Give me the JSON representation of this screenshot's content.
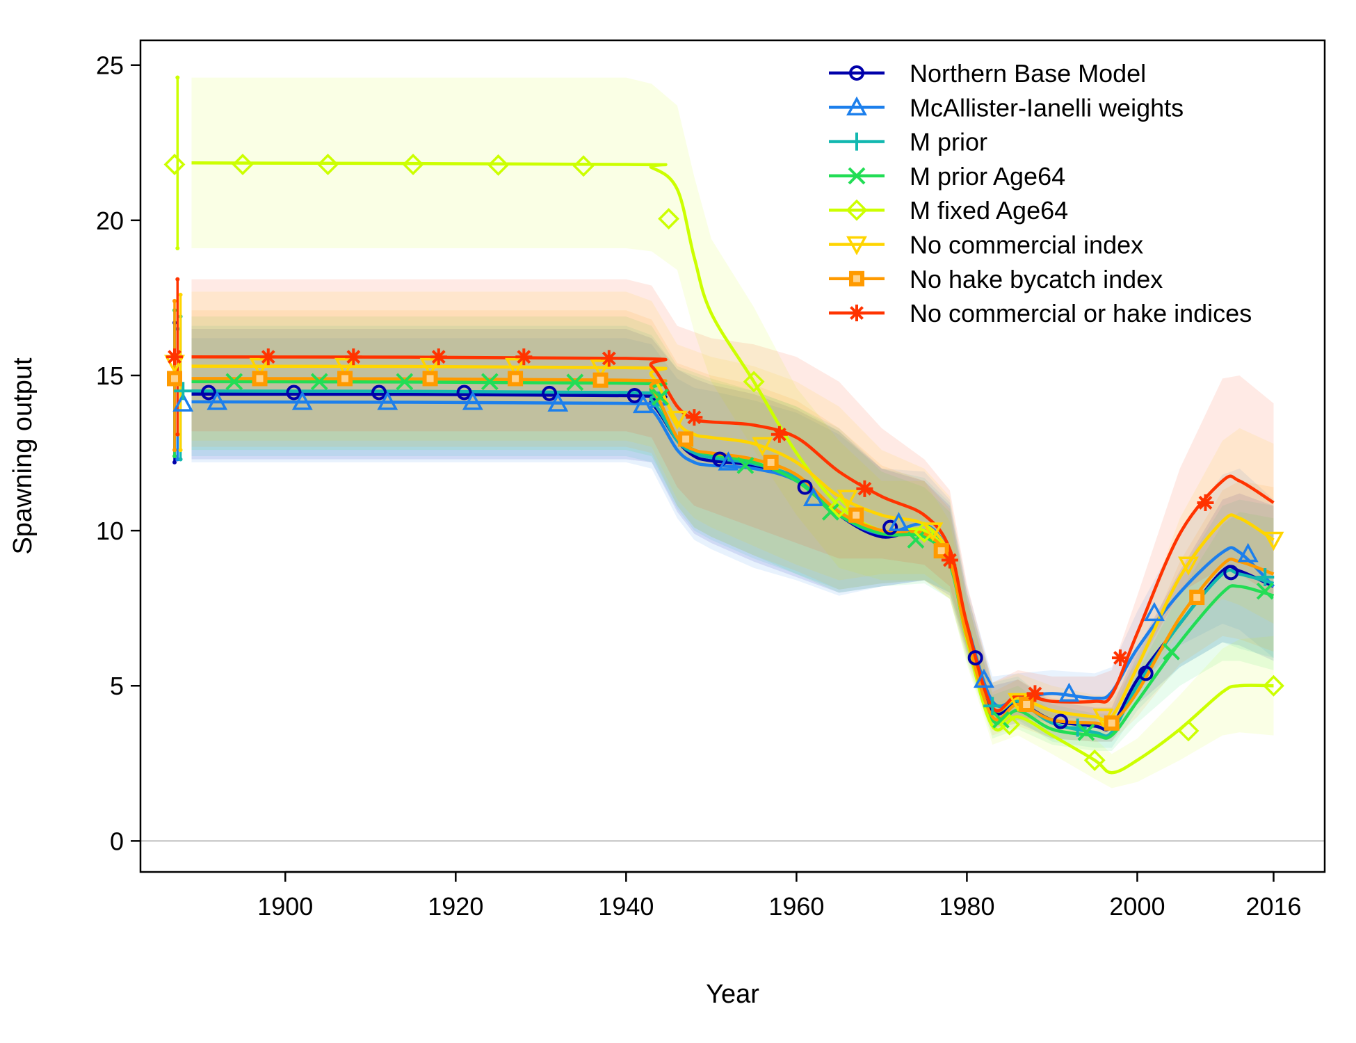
{
  "chart_data": {
    "type": "line",
    "xlabel": "Year",
    "ylabel": "Spawning output",
    "xlim": [
      1883,
      2022
    ],
    "ylim": [
      -1,
      25.8
    ],
    "x_ticks": [
      1900,
      1920,
      1940,
      1960,
      1980,
      2000,
      2016
    ],
    "y_ticks": [
      0,
      5,
      10,
      15,
      20,
      25
    ],
    "zero_line": true,
    "legend_position": "top-right",
    "x": [
      1889,
      1940,
      1943,
      1946,
      1948,
      1950,
      1955,
      1960,
      1965,
      1970,
      1975,
      1978,
      1980,
      1983,
      1986,
      1990,
      1995,
      1997,
      2000,
      2005,
      2010,
      2012,
      2016
    ],
    "series": [
      {
        "name": "Northern Base Model",
        "color": "#0000AA",
        "marker": "circle",
        "start_value": 14.4,
        "start_ci": [
          12.2,
          16.7
        ],
        "values": [
          14.4,
          14.35,
          14.1,
          12.9,
          12.4,
          12.25,
          12.1,
          11.7,
          10.5,
          9.8,
          10.0,
          9.0,
          6.7,
          4.2,
          4.45,
          3.9,
          3.7,
          3.7,
          5.2,
          7.0,
          8.7,
          8.7,
          8.2
        ],
        "ci_lower": [
          12.3,
          12.3,
          12.2,
          10.6,
          9.9,
          9.6,
          9.0,
          8.5,
          8.0,
          8.2,
          8.4,
          7.9,
          6.0,
          3.6,
          3.8,
          3.3,
          3.2,
          3.2,
          4.4,
          5.6,
          6.4,
          6.3,
          5.8
        ],
        "ci_upper": [
          16.5,
          16.5,
          16.2,
          15.2,
          14.9,
          14.7,
          14.4,
          13.9,
          13.2,
          12.0,
          11.6,
          10.8,
          8.0,
          5.0,
          5.2,
          4.5,
          4.3,
          4.3,
          6.2,
          8.7,
          11.0,
          11.2,
          10.8
        ],
        "markers": [
          [
            1891,
            14.45
          ],
          [
            1901,
            14.45
          ],
          [
            1911,
            14.45
          ],
          [
            1921,
            14.45
          ],
          [
            1931,
            14.42
          ],
          [
            1941,
            14.35
          ],
          [
            1951,
            12.3
          ],
          [
            1961,
            11.4
          ],
          [
            1971,
            10.1
          ],
          [
            1981,
            5.9
          ],
          [
            1991,
            3.85
          ],
          [
            2001,
            5.4
          ],
          [
            2011,
            8.65
          ]
        ]
      },
      {
        "name": "McAllister-Ianelli weights",
        "color": "#1C7FEC",
        "marker": "triangle",
        "start_value": 14.1,
        "start_ci": [
          12.3,
          16.5
        ],
        "values": [
          14.15,
          14.1,
          13.9,
          12.6,
          12.2,
          12.1,
          12.0,
          11.6,
          10.5,
          9.9,
          10.2,
          9.2,
          7.0,
          4.5,
          4.6,
          4.75,
          4.6,
          4.8,
          6.2,
          8.0,
          9.3,
          9.3,
          8.2
        ],
        "ci_lower": [
          12.2,
          12.2,
          12.0,
          10.4,
          9.7,
          9.4,
          8.8,
          8.4,
          7.9,
          8.2,
          8.4,
          8.0,
          6.2,
          3.8,
          3.9,
          4.0,
          3.9,
          4.1,
          5.0,
          6.3,
          7.0,
          6.8,
          5.9
        ],
        "ci_upper": [
          16.2,
          16.2,
          16.0,
          14.9,
          14.6,
          14.5,
          14.2,
          13.8,
          13.1,
          12.0,
          11.9,
          11.0,
          8.2,
          5.3,
          5.4,
          5.5,
          5.4,
          5.6,
          7.4,
          9.9,
          11.8,
          12.0,
          11.0
        ],
        "markers": [
          [
            1888,
            14.1
          ],
          [
            1892,
            14.15
          ],
          [
            1902,
            14.15
          ],
          [
            1912,
            14.15
          ],
          [
            1922,
            14.15
          ],
          [
            1932,
            14.1
          ],
          [
            1942,
            14.05
          ],
          [
            1952,
            12.2
          ],
          [
            1962,
            11.05
          ],
          [
            1972,
            10.25
          ],
          [
            1982,
            5.2
          ],
          [
            1992,
            4.75
          ],
          [
            2002,
            7.35
          ],
          [
            2013,
            9.25
          ]
        ]
      },
      {
        "name": "M prior",
        "color": "#12B8B0",
        "marker": "plus",
        "start_value": 14.5,
        "start_ci": [
          12.3,
          16.9
        ],
        "values": [
          14.5,
          14.45,
          14.2,
          12.9,
          12.5,
          12.35,
          12.15,
          11.7,
          10.6,
          9.95,
          10.0,
          9.1,
          6.8,
          4.3,
          4.5,
          3.8,
          3.5,
          3.5,
          5.0,
          7.0,
          8.6,
          8.6,
          8.3
        ],
        "ci_lower": [
          12.4,
          12.4,
          12.2,
          10.7,
          10.0,
          9.7,
          9.1,
          8.6,
          8.1,
          8.3,
          8.4,
          8.0,
          6.1,
          3.7,
          3.9,
          3.2,
          3.0,
          3.0,
          4.2,
          5.6,
          6.4,
          6.2,
          5.9
        ],
        "ci_upper": [
          16.6,
          16.6,
          16.3,
          15.2,
          15.0,
          14.8,
          14.5,
          14.0,
          13.3,
          12.0,
          11.7,
          10.9,
          8.0,
          5.1,
          5.3,
          4.4,
          4.1,
          4.1,
          6.0,
          8.6,
          10.8,
          11.0,
          10.8
        ],
        "markers": [
          [
            1888,
            14.5
          ],
          [
            1983,
            4.35
          ],
          [
            1993,
            3.65
          ],
          [
            2015,
            8.5
          ]
        ]
      },
      {
        "name": "M prior Age64",
        "color": "#22DD55",
        "marker": "x",
        "start_value": 14.7,
        "start_ci": [
          12.4,
          17.1
        ],
        "values": [
          14.8,
          14.75,
          14.5,
          13.0,
          12.6,
          12.45,
          12.2,
          11.6,
          10.5,
          9.9,
          9.8,
          8.9,
          6.5,
          3.9,
          4.2,
          3.6,
          3.4,
          3.4,
          4.5,
          6.4,
          8.0,
          8.2,
          7.9
        ],
        "ci_lower": [
          12.6,
          12.6,
          12.4,
          10.8,
          10.1,
          9.8,
          9.2,
          8.6,
          8.0,
          8.2,
          8.3,
          7.8,
          5.8,
          3.3,
          3.6,
          3.1,
          2.9,
          2.9,
          3.8,
          5.0,
          5.8,
          5.8,
          5.5
        ],
        "ci_upper": [
          16.9,
          16.9,
          16.6,
          15.3,
          15.1,
          14.9,
          14.5,
          14.0,
          13.2,
          11.9,
          11.4,
          10.6,
          7.8,
          4.7,
          5.0,
          4.2,
          4.0,
          4.0,
          5.4,
          8.0,
          10.2,
          10.6,
          10.4
        ],
        "markers": [
          [
            1894,
            14.8
          ],
          [
            1904,
            14.8
          ],
          [
            1914,
            14.8
          ],
          [
            1924,
            14.8
          ],
          [
            1934,
            14.78
          ],
          [
            1944,
            14.3
          ],
          [
            1954,
            12.1
          ],
          [
            1964,
            10.6
          ],
          [
            1974,
            9.7
          ],
          [
            1984,
            3.9
          ],
          [
            1994,
            3.5
          ],
          [
            2004,
            6.1
          ],
          [
            2015,
            8.05
          ]
        ]
      },
      {
        "name": "M fixed Age64",
        "color": "#CCFF00",
        "marker": "diamond",
        "start_value": 21.8,
        "start_ci": [
          19.1,
          24.6
        ],
        "values": [
          21.85,
          21.8,
          21.7,
          21.0,
          18.8,
          17.0,
          14.8,
          12.5,
          10.8,
          10.0,
          10.0,
          9.0,
          6.5,
          3.7,
          4.0,
          3.4,
          2.6,
          2.2,
          2.6,
          3.6,
          4.8,
          5.0,
          5.0
        ],
        "ci_lower": [
          19.1,
          19.1,
          19.0,
          18.4,
          16.4,
          14.8,
          12.6,
          10.5,
          8.8,
          8.4,
          8.4,
          7.8,
          5.7,
          3.1,
          3.4,
          2.8,
          2.0,
          1.7,
          1.9,
          2.6,
          3.4,
          3.5,
          3.4
        ],
        "ci_upper": [
          24.6,
          24.6,
          24.4,
          23.7,
          21.4,
          19.4,
          17.2,
          14.6,
          12.9,
          11.6,
          11.6,
          10.3,
          7.4,
          4.4,
          4.7,
          4.1,
          3.3,
          2.8,
          3.3,
          4.7,
          6.2,
          6.5,
          6.6
        ],
        "markers": [
          [
            1887,
            21.8
          ],
          [
            1895,
            21.8
          ],
          [
            1905,
            21.8
          ],
          [
            1915,
            21.8
          ],
          [
            1925,
            21.78
          ],
          [
            1935,
            21.75
          ],
          [
            1945,
            20.05
          ],
          [
            1955,
            14.8
          ],
          [
            1965,
            10.75
          ],
          [
            1975,
            9.95
          ],
          [
            1985,
            3.75
          ],
          [
            1995,
            2.6
          ],
          [
            2006,
            3.55
          ],
          [
            2016,
            5.0
          ]
        ]
      },
      {
        "name": "No commercial index",
        "color": "#FFD500",
        "marker": "triangle-down",
        "start_value": 15.3,
        "start_ci": [
          12.6,
          17.6
        ],
        "values": [
          15.3,
          15.25,
          15.0,
          13.5,
          13.1,
          13.0,
          12.8,
          12.2,
          11.1,
          10.5,
          10.2,
          9.2,
          6.9,
          4.3,
          4.6,
          4.2,
          4.0,
          4.0,
          5.6,
          8.5,
          10.3,
          10.4,
          9.7
        ],
        "ci_lower": [
          12.9,
          12.9,
          12.7,
          11.0,
          10.4,
          10.1,
          9.5,
          8.9,
          8.4,
          8.6,
          8.6,
          8.0,
          6.1,
          3.6,
          3.9,
          3.5,
          3.4,
          3.4,
          4.7,
          6.8,
          7.8,
          7.6,
          7.0
        ],
        "ci_upper": [
          17.7,
          17.7,
          17.4,
          16.0,
          15.8,
          15.6,
          15.3,
          14.8,
          14.0,
          12.6,
          12.0,
          11.1,
          8.1,
          5.1,
          5.4,
          5.0,
          4.7,
          4.7,
          6.7,
          10.4,
          12.9,
          13.3,
          12.8
        ],
        "markers": [
          [
            1887,
            15.4
          ],
          [
            1897,
            15.3
          ],
          [
            1907,
            15.3
          ],
          [
            1917,
            15.3
          ],
          [
            1927,
            15.3
          ],
          [
            1937,
            15.25
          ],
          [
            1946,
            13.6
          ],
          [
            1956,
            12.75
          ],
          [
            1966,
            11.05
          ],
          [
            1976,
            10.0
          ],
          [
            1986,
            4.5
          ],
          [
            1996,
            4.0
          ],
          [
            2006,
            8.9
          ],
          [
            2016,
            9.7
          ]
        ]
      },
      {
        "name": "No hake bycatch index",
        "color": "#FF9A00",
        "marker": "square",
        "start_value": 14.9,
        "start_ci": [
          12.6,
          17.4
        ],
        "values": [
          14.9,
          14.85,
          14.6,
          13.0,
          12.6,
          12.5,
          12.3,
          11.8,
          10.6,
          10.0,
          9.9,
          9.0,
          6.6,
          4.0,
          4.4,
          3.9,
          3.8,
          3.8,
          4.8,
          7.2,
          8.9,
          9.0,
          8.6
        ],
        "ci_lower": [
          12.7,
          12.7,
          12.5,
          10.8,
          10.1,
          9.8,
          9.2,
          8.7,
          8.1,
          8.3,
          8.4,
          7.8,
          5.9,
          3.4,
          3.7,
          3.3,
          3.2,
          3.2,
          4.0,
          5.7,
          6.6,
          6.5,
          6.1
        ],
        "ci_upper": [
          17.1,
          17.1,
          16.8,
          15.4,
          15.2,
          15.0,
          14.7,
          14.2,
          13.3,
          12.1,
          11.6,
          10.7,
          7.8,
          4.8,
          5.2,
          4.6,
          4.5,
          4.5,
          5.8,
          9.0,
          11.3,
          11.6,
          11.4
        ],
        "markers": [
          [
            1887,
            14.9
          ],
          [
            1897,
            14.9
          ],
          [
            1907,
            14.9
          ],
          [
            1917,
            14.9
          ],
          [
            1927,
            14.9
          ],
          [
            1937,
            14.85
          ],
          [
            1947,
            12.95
          ],
          [
            1957,
            12.2
          ],
          [
            1967,
            10.5
          ],
          [
            1977,
            9.35
          ],
          [
            1987,
            4.4
          ],
          [
            1997,
            3.8
          ],
          [
            2007,
            7.85
          ]
        ]
      },
      {
        "name": "No commercial or hake indices",
        "color": "#FF3300",
        "marker": "asterisk",
        "start_value": 15.6,
        "start_ci": [
          13.1,
          18.1
        ],
        "values": [
          15.6,
          15.55,
          15.3,
          14.0,
          13.6,
          13.5,
          13.4,
          13.0,
          11.9,
          11.1,
          10.5,
          9.4,
          7.0,
          4.3,
          4.7,
          4.5,
          4.5,
          4.7,
          6.7,
          9.9,
          11.6,
          11.6,
          10.9
        ],
        "ci_lower": [
          13.2,
          13.2,
          13.0,
          11.4,
          10.8,
          10.6,
          10.1,
          9.6,
          9.1,
          9.1,
          8.9,
          8.2,
          6.2,
          3.6,
          4.0,
          3.8,
          3.8,
          4.0,
          5.6,
          8.0,
          8.8,
          8.6,
          7.9
        ],
        "ci_upper": [
          18.1,
          18.1,
          17.9,
          16.6,
          16.4,
          16.2,
          16.0,
          15.6,
          14.8,
          13.3,
          12.3,
          11.3,
          8.3,
          5.1,
          5.5,
          5.3,
          5.3,
          5.5,
          7.9,
          12.0,
          14.9,
          15.0,
          14.1
        ],
        "markers": [
          [
            1887,
            15.6
          ],
          [
            1898,
            15.6
          ],
          [
            1908,
            15.6
          ],
          [
            1918,
            15.6
          ],
          [
            1928,
            15.6
          ],
          [
            1938,
            15.55
          ],
          [
            1948,
            13.65
          ],
          [
            1958,
            13.1
          ],
          [
            1968,
            11.35
          ],
          [
            1978,
            9.05
          ],
          [
            1988,
            4.75
          ],
          [
            1998,
            5.9
          ],
          [
            2008,
            10.9
          ]
        ]
      }
    ]
  }
}
